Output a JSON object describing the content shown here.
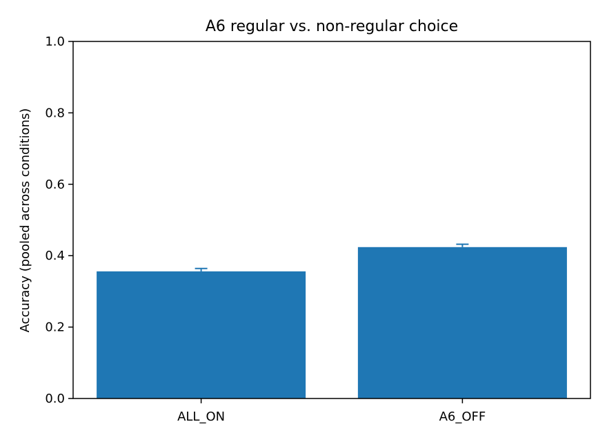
{
  "chart_data": {
    "type": "bar",
    "title": "A6 regular vs. non-regular choice",
    "xlabel": "",
    "ylabel": "Accuracy (pooled across conditions)",
    "categories": [
      "ALL_ON",
      "A6_OFF"
    ],
    "values": [
      0.356,
      0.424
    ],
    "error_upper": [
      0.364,
      0.432
    ],
    "ylim": [
      0,
      1.0
    ],
    "yticks": [
      0.0,
      0.2,
      0.4,
      0.6,
      0.8,
      1.0
    ],
    "ytick_labels": [
      "0.0",
      "0.2",
      "0.4",
      "0.6",
      "0.8",
      "1.0"
    ],
    "grid": false,
    "colors": {
      "bar": "#1f77b4",
      "errorbar": "#1f77b4",
      "axis": "#000000"
    }
  }
}
